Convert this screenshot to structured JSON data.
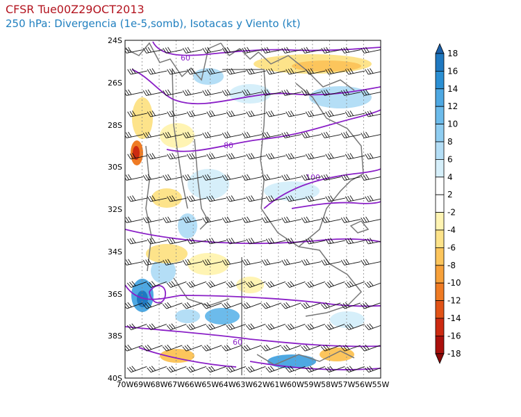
{
  "header": {
    "title": "CFSR Tue00Z29OCT2013",
    "subtitle": "250 hPa: Divergencia (1e-5,somb), Isotacas y Viento (kt)"
  },
  "map": {
    "lat_labels": [
      "24S",
      "26S",
      "28S",
      "30S",
      "32S",
      "34S",
      "36S",
      "38S",
      "40S"
    ],
    "lon_labels": [
      "70W",
      "69W",
      "68W",
      "67W",
      "66W",
      "65W",
      "64W",
      "63W",
      "62W",
      "61W",
      "60W",
      "59W",
      "58W",
      "57W",
      "56W",
      "55W"
    ],
    "isotach_labels": [
      "60",
      "80",
      "100",
      "60"
    ]
  },
  "colorbar": {
    "labels": [
      "18",
      "16",
      "14",
      "12",
      "10",
      "8",
      "6",
      "4",
      "2",
      "-2",
      "-4",
      "-6",
      "-8",
      "-10",
      "-12",
      "-14",
      "-16",
      "-18"
    ],
    "colors": [
      "#1a5fa8",
      "#1f78c0",
      "#2b8fd3",
      "#4ea8e2",
      "#6cbbeb",
      "#8fcdf1",
      "#b4def6",
      "#d6effa",
      "#ffffff",
      "#ffffff",
      "#fff4b3",
      "#fde38a",
      "#fcc55c",
      "#f7a13a",
      "#ef7b24",
      "#e15317",
      "#cc2a11",
      "#aa100c",
      "#8a0808"
    ]
  },
  "chart_data": {
    "type": "heatmap",
    "title": "CFSR Tue00Z29OCT2013",
    "subtitle": "250 hPa: Divergencia (1e-5,somb), Isotacas y Viento (kt)",
    "lat_range": [
      "40S",
      "24S"
    ],
    "lon_range": [
      "70W",
      "55W"
    ],
    "colorbar_ticks": [
      18,
      16,
      14,
      12,
      10,
      8,
      6,
      4,
      2,
      -2,
      -4,
      -6,
      -8,
      -10,
      -12,
      -14,
      -16,
      -18
    ],
    "isotach_contours_kt": [
      60,
      80,
      100,
      60
    ]
  }
}
